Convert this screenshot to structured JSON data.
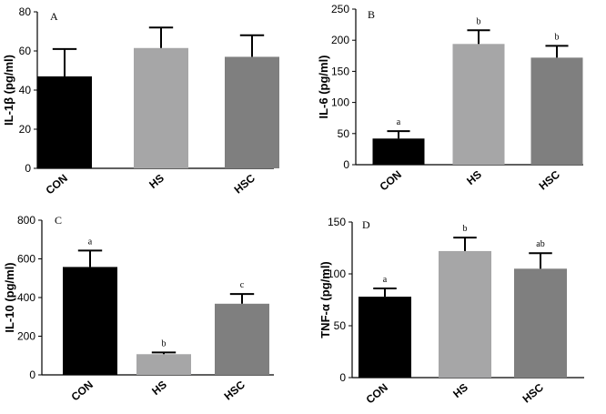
{
  "chart_data": [
    {
      "type": "bar",
      "panel": "A",
      "categories": [
        "CON",
        "HS",
        "HSC"
      ],
      "values": [
        47,
        61.5,
        57
      ],
      "errors": [
        14,
        10.5,
        11
      ],
      "significance": [
        "",
        "",
        ""
      ],
      "bar_colors": [
        "#000000",
        "#a6a6a7",
        "#7f7f7f"
      ],
      "title": "",
      "xlabel": "",
      "ylabel": "IL-1β  (pg/ml)",
      "ylim": [
        0,
        80
      ],
      "yticks": [
        0,
        20,
        40,
        60,
        80
      ]
    },
    {
      "type": "bar",
      "panel": "B",
      "categories": [
        "CON",
        "HS",
        "HSC"
      ],
      "values": [
        42,
        194,
        172
      ],
      "errors": [
        12,
        22,
        19
      ],
      "significance": [
        "a",
        "b",
        "b"
      ],
      "bar_colors": [
        "#000000",
        "#a6a6a7",
        "#7f7f7f"
      ],
      "title": "",
      "xlabel": "",
      "ylabel": "IL-6 (pg/ml)",
      "ylim": [
        0,
        250
      ],
      "yticks": [
        0,
        50,
        100,
        150,
        200,
        250
      ]
    },
    {
      "type": "bar",
      "panel": "C",
      "categories": [
        "CON",
        "HS",
        "HSC"
      ],
      "values": [
        558,
        107,
        368
      ],
      "errors": [
        85,
        9,
        50
      ],
      "significance": [
        "a",
        "b",
        "c"
      ],
      "bar_colors": [
        "#000000",
        "#a6a6a7",
        "#7f7f7f"
      ],
      "title": "",
      "xlabel": "",
      "ylabel": "IL-10 (pg/ml)",
      "ylim": [
        0,
        800
      ],
      "yticks": [
        0,
        200,
        400,
        600,
        800
      ]
    },
    {
      "type": "bar",
      "panel": "D",
      "categories": [
        "CON",
        "HS",
        "HSC"
      ],
      "values": [
        78,
        122,
        105
      ],
      "errors": [
        8,
        13,
        15
      ],
      "significance": [
        "a",
        "b",
        "ab"
      ],
      "bar_colors": [
        "#000000",
        "#a6a6a7",
        "#7f7f7f"
      ],
      "title": "",
      "xlabel": "",
      "ylabel": "TNF-α (pg/ml)",
      "ylim": [
        0,
        150
      ],
      "yticks": [
        0,
        50,
        100,
        150
      ]
    }
  ]
}
